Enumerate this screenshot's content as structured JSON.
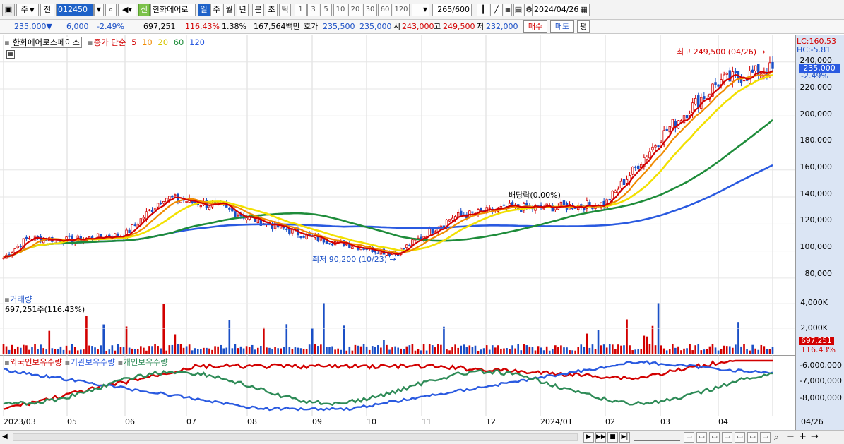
{
  "toolbar": {
    "mode": "주",
    "prev_label": "전",
    "code": "012450",
    "shin_badge": "신",
    "stock_name": "한화에어로",
    "periods": [
      "일",
      "주",
      "월",
      "년",
      "분",
      "초",
      "틱"
    ],
    "selected_period": "일",
    "intervals": [
      "1",
      "3",
      "5",
      "10",
      "20",
      "30",
      "60",
      "120"
    ],
    "count_value": "265",
    "count_max": "/600",
    "date": "2024/04/26"
  },
  "infobar": {
    "price": "235,000",
    "price_arrow": "▼",
    "change": "6,000",
    "change_pct": "-2.49%",
    "volume": "697,251",
    "volume_ratio": "116.43%",
    "turnover": "1.38%",
    "amount": "167,564백만",
    "hoga_label": "호가",
    "hoga_ask": "235,500",
    "hoga_bid": "235,000",
    "open_label": "시",
    "open": "243,000",
    "high_label": "고",
    "high": "249,500",
    "low_label": "저",
    "low": "232,000",
    "buy_label": "매수",
    "sell_label": "매도",
    "avg_label": "평"
  },
  "price_panel": {
    "stock_label": "한화에어로스페이스",
    "legend_close": "종가 단순",
    "ma_labels": [
      "5",
      "10",
      "20",
      "60",
      "120"
    ],
    "ma_colors": [
      "#d20000",
      "#f08a00",
      "#f2e000",
      "#1e8c3a",
      "#2a5ae0"
    ],
    "lc": "LC:160.53",
    "hc": "HC:-5.81",
    "y_ticks": [
      "240,000",
      "220,000",
      "200,000",
      "180,000",
      "160,000",
      "140,000",
      "120,000",
      "100,000",
      "80,000"
    ],
    "current_price_box": "235,000",
    "current_pct": "-2.49%",
    "high_annotation": "최고 249,500 (04/26)",
    "low_annotation": "최저 90,200 (10/23)",
    "dividend_annotation": "배당락(0.00%)"
  },
  "volume_panel": {
    "title": "거래량",
    "summary": "697,251주(116.43%)",
    "y_ticks": [
      "4,000K",
      "2,000K"
    ],
    "current_box": "697,251",
    "current_pct": "116.43%"
  },
  "holding_panel": {
    "legend": [
      "외국인보유수량",
      "기관보유수량",
      "개인보유수량"
    ],
    "legend_colors": [
      "#d20000",
      "#2a5ae0",
      "#2e8b57"
    ],
    "y_ticks": [
      "-6,000,000",
      "-7,000,000",
      "-8,000,000"
    ]
  },
  "x_axis": {
    "labels": [
      "2023/03",
      "05",
      "06",
      "07",
      "08",
      "09",
      "10",
      "11",
      "12",
      "2024/01",
      "02",
      "03",
      "04"
    ],
    "end_label": "04/26"
  },
  "chart_data": {
    "type": "candlestick",
    "title": "",
    "x_range": [
      "2023/03",
      "2024/04/26"
    ],
    "ylim": [
      70000,
      255000
    ],
    "close_approx": [
      {
        "date": "2023/03",
        "close": 95000
      },
      {
        "date": "2023/04",
        "close": 110000
      },
      {
        "date": "2023/05",
        "close": 108000
      },
      {
        "date": "2023/06",
        "close": 112000
      },
      {
        "date": "2023/06 late",
        "close": 140000
      },
      {
        "date": "2023/07",
        "close": 133000
      },
      {
        "date": "2023/08",
        "close": 125000
      },
      {
        "date": "2023/09",
        "close": 110000
      },
      {
        "date": "2023/10",
        "close": 98000
      },
      {
        "date": "2023/11",
        "close": 125000
      },
      {
        "date": "2023/12",
        "close": 132000
      },
      {
        "date": "2024/01",
        "close": 132000
      },
      {
        "date": "2024/02",
        "close": 135000
      },
      {
        "date": "2024/03",
        "close": 190000
      },
      {
        "date": "2024/04",
        "close": 225000
      },
      {
        "date": "2024/04/26",
        "close": 235000
      }
    ],
    "series": [
      {
        "name": "5",
        "color": "#d20000"
      },
      {
        "name": "10",
        "color": "#f08a00"
      },
      {
        "name": "20",
        "color": "#f2e000"
      },
      {
        "name": "60",
        "color": "#1e8c3a"
      },
      {
        "name": "120",
        "color": "#2a5ae0"
      }
    ],
    "annotations": {
      "high": {
        "date": "04/26",
        "value": 249500
      },
      "low": {
        "date": "10/23",
        "value": 90200
      }
    }
  }
}
